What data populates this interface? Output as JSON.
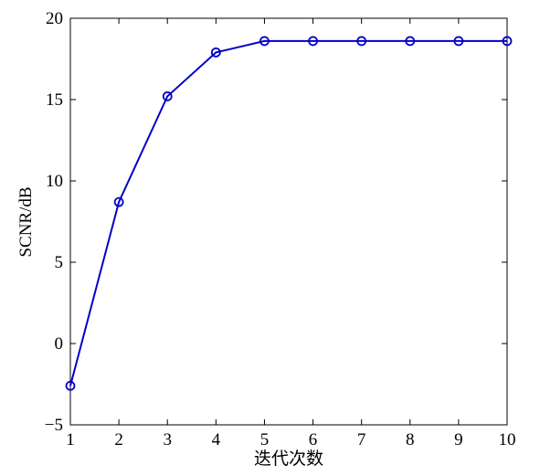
{
  "chart_data": {
    "type": "line",
    "x_label": "迭代次数",
    "y_label": "SCNR/dB",
    "x": [
      1,
      2,
      3,
      4,
      5,
      6,
      7,
      8,
      9,
      10
    ],
    "series": [
      {
        "color": "#0000cc",
        "marker": "circle",
        "values": [
          -2.6,
          8.7,
          15.2,
          17.9,
          18.6,
          18.6,
          18.6,
          18.6,
          18.6,
          18.6
        ]
      }
    ],
    "xlim": [
      1,
      10
    ],
    "xticks": [
      1,
      2,
      3,
      4,
      5,
      6,
      7,
      8,
      9,
      10
    ],
    "ylim": [
      -5,
      20
    ],
    "yticks": [
      {
        "value": -5,
        "label": "−5"
      },
      0,
      5,
      10,
      15,
      20
    ],
    "grid": false
  }
}
